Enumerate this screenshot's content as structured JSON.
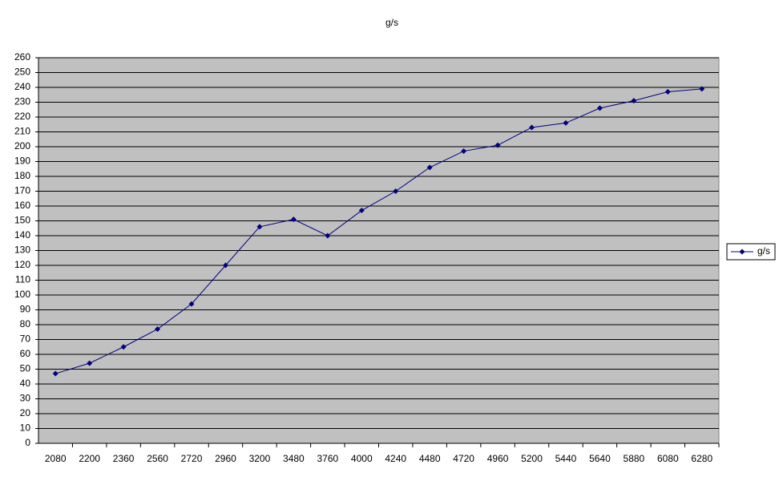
{
  "chart_data": {
    "type": "line",
    "title": "g/s",
    "categories": [
      "2080",
      "2200",
      "2360",
      "2560",
      "2720",
      "2960",
      "3200",
      "3480",
      "3760",
      "4000",
      "4240",
      "4480",
      "4720",
      "4960",
      "5200",
      "5440",
      "5640",
      "5880",
      "6080",
      "6280"
    ],
    "series": [
      {
        "name": "g/s",
        "color": "#000080",
        "values": [
          47,
          54,
          65,
          77,
          94,
          120,
          146,
          151,
          140,
          157,
          170,
          186,
          197,
          201,
          213,
          216,
          226,
          231,
          237,
          239
        ]
      }
    ],
    "ylim": [
      0,
      260
    ],
    "yticks": [
      0,
      10,
      20,
      30,
      40,
      50,
      60,
      70,
      80,
      90,
      100,
      110,
      120,
      130,
      140,
      150,
      160,
      170,
      180,
      190,
      200,
      210,
      220,
      230,
      240,
      250,
      260
    ],
    "grid": true,
    "legend": "right",
    "background": "#c0c0c0"
  }
}
